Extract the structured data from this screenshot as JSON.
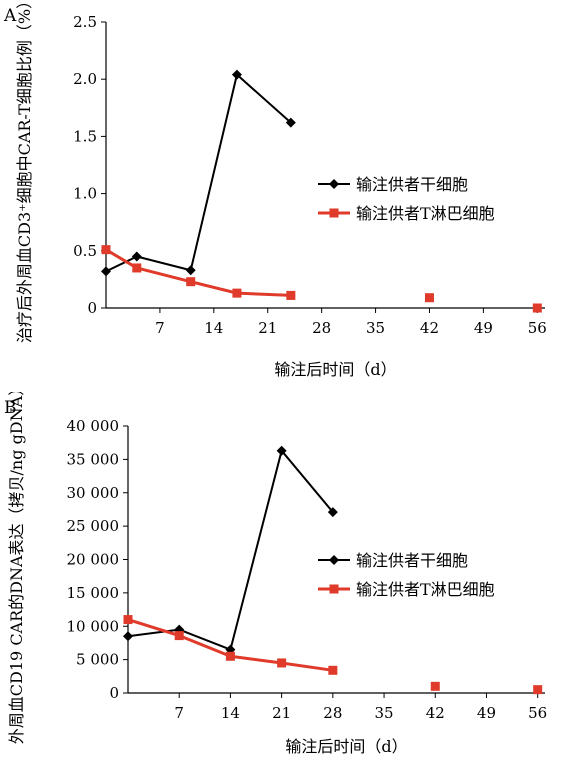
{
  "colors": {
    "donor_stem": "#000000",
    "donor_t": "#e03a2a"
  },
  "charts": [
    {
      "panel_label": "A",
      "chart_data": {
        "type": "line",
        "title": "",
        "xlabel": "输注后时间（d）",
        "ylabel": "治疗后外周血CD3⁺细胞中CAR-T细胞比例（%）",
        "x_ticks": [
          "7",
          "14",
          "21",
          "28",
          "35",
          "42",
          "49",
          "56"
        ],
        "x_range": [
          0,
          57
        ],
        "y_ticks": [
          "0",
          "0.5",
          "1.0",
          "1.5",
          "2.0",
          "2.5"
        ],
        "y_range": [
          0,
          2.5
        ],
        "legend_position": "right",
        "series": [
          {
            "name": "输注供者干细胞",
            "marker": "diamond",
            "color": "#000000",
            "x": [
              0,
              4,
              11,
              17,
              24
            ],
            "y": [
              0.32,
              0.45,
              0.33,
              2.04,
              1.62
            ]
          },
          {
            "name": "输注供者T淋巴细胞",
            "marker": "square",
            "color": "#e03a2a",
            "x": [
              0,
              4,
              11,
              17,
              24,
              42,
              56
            ],
            "y": [
              0.51,
              0.35,
              0.23,
              0.13,
              0.11,
              0.09,
              0.0
            ]
          }
        ]
      }
    },
    {
      "panel_label": "B",
      "chart_data": {
        "type": "line",
        "title": "",
        "xlabel": "输注后时间（d）",
        "ylabel": "外周血CD19 CAR的DNA表达（拷贝/ng gDNA）",
        "x_ticks": [
          "7",
          "14",
          "21",
          "28",
          "35",
          "42",
          "49",
          "56"
        ],
        "x_range": [
          0,
          57
        ],
        "y_ticks": [
          "0",
          "5 000",
          "10 000",
          "15 000",
          "20 000",
          "25 000",
          "30 000",
          "35 000",
          "40 000"
        ],
        "y_range": [
          0,
          40000
        ],
        "legend_position": "right",
        "series": [
          {
            "name": "输注供者干细胞",
            "marker": "diamond",
            "color": "#000000",
            "x": [
              0,
              7,
              14,
              21,
              28
            ],
            "y": [
              8500,
              9500,
              6500,
              36300,
              27100
            ]
          },
          {
            "name": "输注供者T淋巴细胞",
            "marker": "square",
            "color": "#e03a2a",
            "x": [
              0,
              7,
              14,
              21,
              28,
              42,
              56
            ],
            "y": [
              11000,
              8600,
              5500,
              4500,
              3400,
              1000,
              500
            ]
          }
        ]
      }
    }
  ]
}
